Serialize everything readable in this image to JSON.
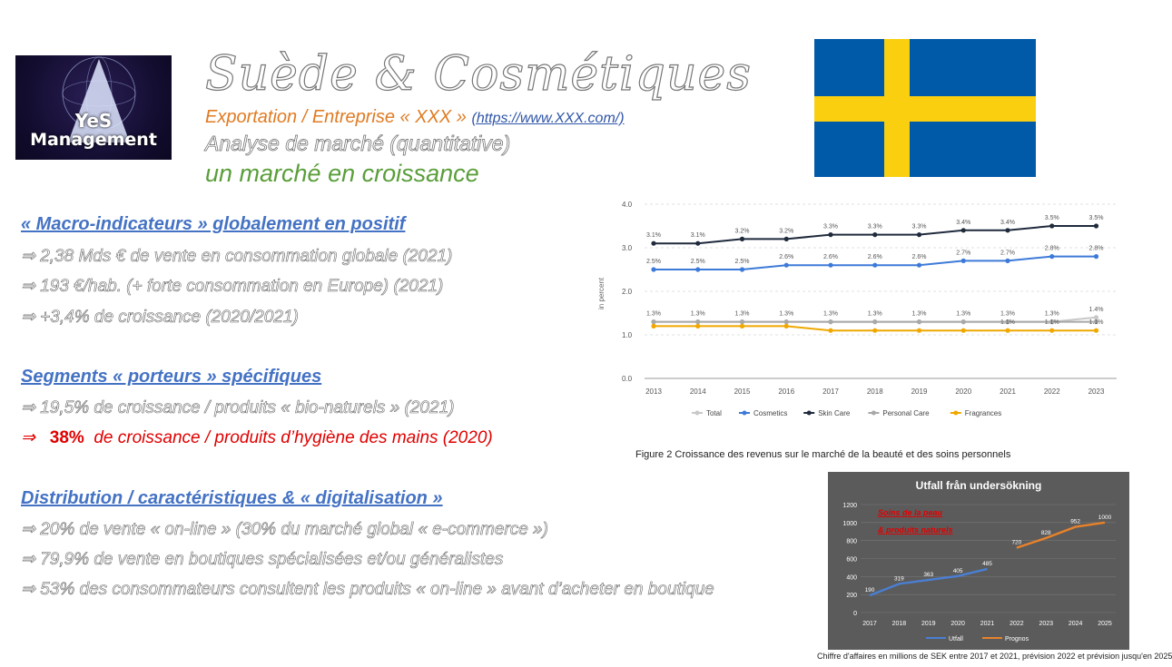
{
  "logo": {
    "line1": "YeS",
    "line2": "Management"
  },
  "header": {
    "title": "Suède & Cosmétiques",
    "subtitle_prefix": "Exportation / Entreprise « XXX » ",
    "subtitle_url": "(https://www.XXX.com/)",
    "analysis": "Analyse de marché (quantitative)",
    "growth": "un marché en croissance"
  },
  "colors": {
    "orange": "#e07b22",
    "blue_heading": "#4472c4",
    "green": "#5a9e3a",
    "red": "#e00000",
    "flag_blue": "#005aa8",
    "flag_yellow": "#f9cf10"
  },
  "sections": [
    {
      "heading": "« Macro-indicateurs » globalement en positif",
      "items": [
        "⇒  2,38 Mds € de vente en consommation globale (2021)",
        "⇒  193 €/hab. (+ forte consommation en Europe) (2021)",
        "⇒  +3,4% de croissance (2020/2021)"
      ]
    },
    {
      "heading": "Segments « porteurs » spécifiques",
      "items": [
        "⇒  19,5% de croissance / produits « bio-naturels » (2021)"
      ],
      "highlight": {
        "arrow": "⇒",
        "value": "38%",
        "text": "  de croissance / produits d’hygiène des mains (2020)"
      }
    },
    {
      "heading": "Distribution / caractéristiques & « digitalisation »",
      "items": [
        "⇒  20% de vente « on-line » (30% du marché global « e-commerce »)",
        "⇒  79,9% de vente en boutiques spécialisées et/ou généralistes",
        "⇒  53% des consommateurs consultent les produits « on-line » avant d’acheter en boutique"
      ]
    }
  ],
  "chart_data": [
    {
      "type": "line",
      "title": "",
      "ylabel": "in percent",
      "ylim": [
        0,
        4
      ],
      "yticks": [
        "0.0",
        "1.0",
        "2.0",
        "3.0",
        "4.0"
      ],
      "x": [
        "2013",
        "2014",
        "2015",
        "2016",
        "2017",
        "2018",
        "2019",
        "2020",
        "2021",
        "2022",
        "2023"
      ],
      "legend_position": "bottom",
      "series": [
        {
          "name": "Total",
          "color": "#c8c8c8",
          "values": [
            1.3,
            1.3,
            1.3,
            1.3,
            1.3,
            1.3,
            1.3,
            1.3,
            1.3,
            1.3,
            1.4
          ],
          "labels": [
            "1.3%",
            "1.3%",
            "1.3%",
            "1.3%",
            "1.3%",
            "1.3%",
            "1.3%",
            "1.3%",
            "1.3%",
            "1.3%",
            "1.4%"
          ]
        },
        {
          "name": "Cosmetics",
          "color": "#3d7ad8",
          "values": [
            2.5,
            2.5,
            2.5,
            2.6,
            2.6,
            2.6,
            2.6,
            2.7,
            2.7,
            2.8,
            2.8
          ],
          "labels": [
            "2.5%",
            "2.5%",
            "2.5%",
            "2.6%",
            "2.6%",
            "2.6%",
            "2.6%",
            "2.7%",
            "2.7%",
            "2.8%",
            "2.8%"
          ]
        },
        {
          "name": "Skin Care",
          "color": "#1f2a3c",
          "values": [
            3.1,
            3.1,
            3.2,
            3.2,
            3.3,
            3.3,
            3.3,
            3.4,
            3.4,
            3.5,
            3.5
          ],
          "labels": [
            "3.1%",
            "3.1%",
            "3.2%",
            "3.2%",
            "3.3%",
            "3.3%",
            "3.3%",
            "3.4%",
            "3.4%",
            "3.5%",
            "3.5%"
          ]
        },
        {
          "name": "Personal Care",
          "color": "#a8a8a8",
          "values": [
            1.3,
            1.3,
            1.3,
            1.3,
            1.3,
            1.3,
            1.3,
            1.3,
            1.3,
            1.3,
            1.3
          ],
          "labels": [
            "",
            "",
            "",
            "",
            "",
            "",
            "",
            "",
            "",
            "",
            ""
          ]
        },
        {
          "name": "Fragrances",
          "color": "#f0a800",
          "values": [
            1.2,
            1.2,
            1.2,
            1.2,
            1.1,
            1.1,
            1.1,
            1.1,
            1.1,
            1.1,
            1.1
          ],
          "labels": [
            "",
            "",
            "",
            "",
            "",
            "",
            "",
            "",
            "1.1%",
            "1.1%",
            "1.1%"
          ]
        }
      ],
      "caption": "Figure 2 Croissance des revenus sur le marché de la beauté et des soins personnels"
    },
    {
      "type": "line",
      "title": "Utfall från undersökning",
      "annotation": [
        "Soins de la peau",
        "& produits naturels"
      ],
      "ylim": [
        0,
        1200
      ],
      "yticks": [
        "0",
        "200",
        "400",
        "600",
        "800",
        "1000",
        "1200"
      ],
      "x": [
        "2017",
        "2018",
        "2019",
        "2020",
        "2021",
        "2022",
        "2023",
        "2024",
        "2025"
      ],
      "legend_position": "bottom",
      "series": [
        {
          "name": "Utfall",
          "color": "#4a7fd4",
          "values": [
            190,
            319,
            363,
            405,
            485,
            null,
            null,
            null,
            null
          ]
        },
        {
          "name": "Prognos",
          "color": "#e8822b",
          "values": [
            null,
            null,
            null,
            null,
            null,
            720,
            828,
            952,
            1000
          ]
        }
      ],
      "caption": "Chiffre d'affaires en millions de SEK entre 2017 et 2021, prévision 2022 et prévision jusqu'en 2025"
    }
  ]
}
